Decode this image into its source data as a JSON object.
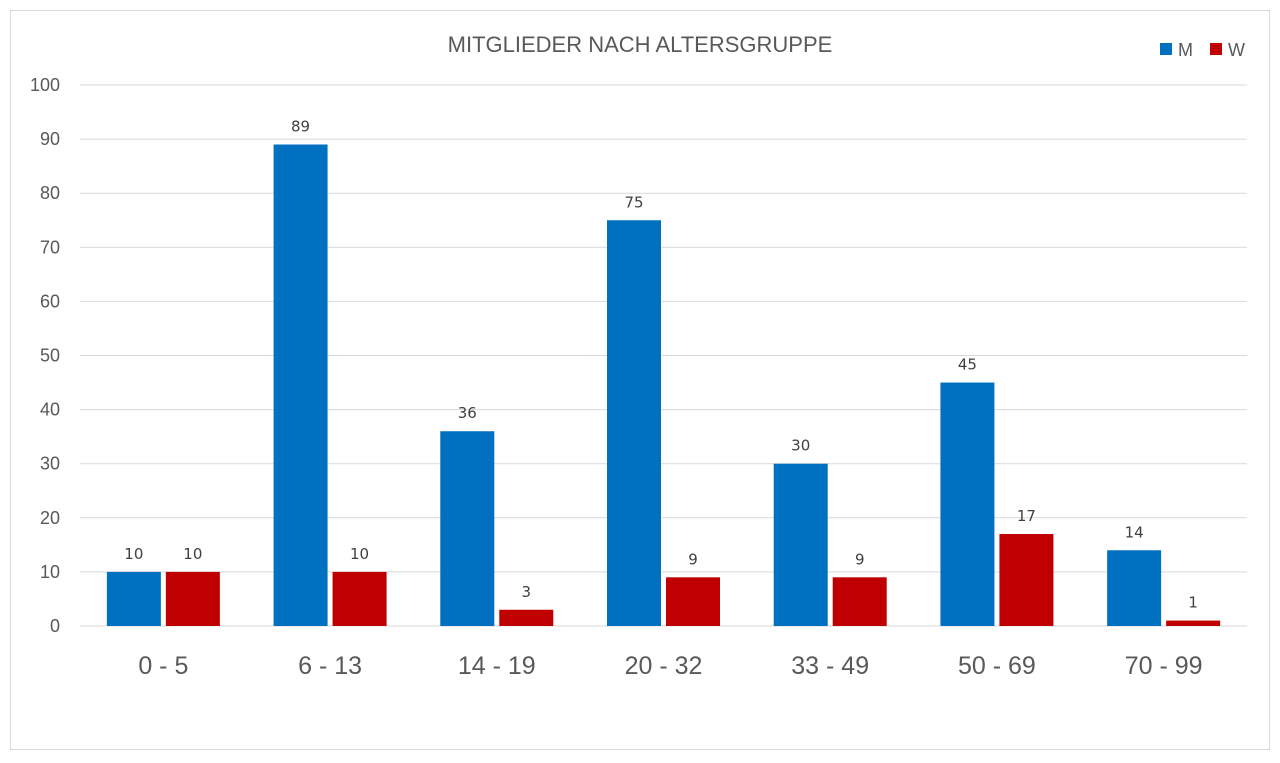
{
  "chart_data": {
    "type": "bar",
    "title": "MITGLIEDER NACH ALTERSGRUPPE",
    "categories": [
      "0 - 5",
      "6 - 13",
      "14 - 19",
      "20 - 32",
      "33 - 49",
      "50 - 69",
      "70 - 99"
    ],
    "series": [
      {
        "name": "M",
        "color": "#0070C0",
        "values": [
          10,
          89,
          36,
          75,
          30,
          45,
          14
        ]
      },
      {
        "name": "W",
        "color": "#C00000",
        "values": [
          10,
          10,
          3,
          9,
          9,
          17,
          1
        ]
      }
    ],
    "ylim": [
      0,
      100
    ],
    "yticks": [
      0,
      10,
      20,
      30,
      40,
      50,
      60,
      70,
      80,
      90,
      100
    ],
    "grid": true,
    "legend_position": "top-right",
    "data_labels": true
  }
}
